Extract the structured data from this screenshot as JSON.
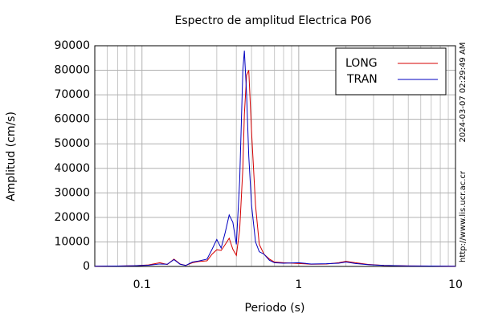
{
  "chart_data": {
    "type": "line",
    "title": "Espectro de amplitud Electrica P06",
    "x_label": "Periodo (s)",
    "y_label": "Amplitud (cm/s)",
    "side_texts": [
      "2024-03-07 02:29:49 AM",
      "http://www.lis.ucr.ac.cr"
    ],
    "xscale": "log",
    "xlim": [
      0.05,
      10
    ],
    "xticks": [
      0.1,
      1,
      10
    ],
    "x_minor_ticks": [
      0.06,
      0.07,
      0.08,
      0.09,
      0.2,
      0.3,
      0.4,
      0.5,
      0.6,
      0.7,
      0.8,
      0.9,
      2,
      3,
      4,
      5,
      6,
      7,
      8,
      9
    ],
    "ylim": [
      0,
      90000
    ],
    "yticks": [
      0,
      10000,
      20000,
      30000,
      40000,
      50000,
      60000,
      70000,
      80000,
      90000
    ],
    "grid": true,
    "legend": "upper right",
    "x": [
      0.05,
      0.07,
      0.09,
      0.11,
      0.13,
      0.145,
      0.16,
      0.175,
      0.19,
      0.21,
      0.23,
      0.26,
      0.28,
      0.3,
      0.32,
      0.34,
      0.36,
      0.38,
      0.4,
      0.42,
      0.44,
      0.45,
      0.465,
      0.48,
      0.5,
      0.53,
      0.56,
      0.6,
      0.65,
      0.7,
      0.8,
      1.0,
      1.2,
      1.5,
      1.8,
      2.0,
      2.3,
      2.8,
      3.5,
      5,
      7,
      10
    ],
    "series": [
      {
        "name": "LONG",
        "color": "#d40000",
        "values": [
          100,
          150,
          300,
          600,
          1500,
          800,
          3000,
          1000,
          400,
          1500,
          2000,
          2300,
          5000,
          6800,
          6500,
          9000,
          11500,
          7000,
          4500,
          15000,
          40000,
          62000,
          78000,
          80000,
          55000,
          25000,
          9000,
          5000,
          3000,
          1800,
          1500,
          1200,
          900,
          1000,
          1500,
          2100,
          1500,
          800,
          400,
          200,
          150,
          100
        ]
      },
      {
        "name": "TRAN",
        "color": "#0000c0",
        "values": [
          100,
          150,
          300,
          500,
          1000,
          900,
          2800,
          900,
          400,
          1800,
          2200,
          3000,
          7000,
          11000,
          7500,
          14000,
          21000,
          18000,
          9000,
          35000,
          80000,
          88000,
          70000,
          45000,
          25000,
          10000,
          6000,
          5000,
          2500,
          1500,
          1300,
          1500,
          1000,
          1100,
          1300,
          1800,
          1200,
          700,
          400,
          200,
          150,
          100
        ]
      }
    ]
  }
}
